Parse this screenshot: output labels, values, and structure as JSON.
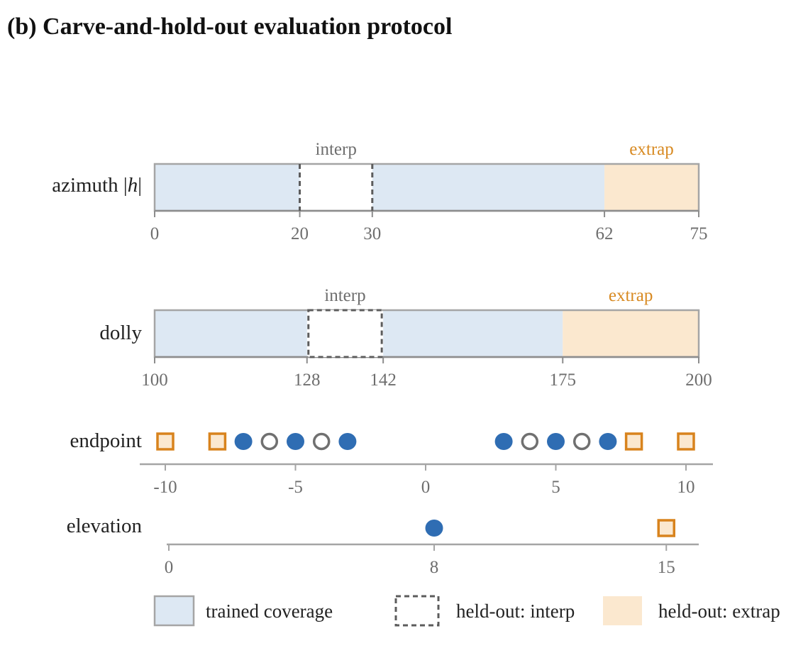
{
  "title": "(b)  Carve-and-hold-out evaluation protocol",
  "colors": {
    "trained": "#dde8f3",
    "extrap_fill": "#fbe8cf",
    "extrap_text": "#d88a22",
    "marker_orange": "#d8831d",
    "marker_blue": "#2f6db3",
    "ring_gray": "#707070",
    "frame": "#a5a5a5",
    "axis": "#a5a5a5",
    "tick_text": "#6e6e6e",
    "dash": "#5c5c5c"
  },
  "chart_data": [
    {
      "type": "range_bar",
      "row": "azimuth",
      "label_pre": "azimuth |",
      "label_ital": "h",
      "label_post": "|",
      "domain": [
        0,
        75
      ],
      "ticks": [
        "0",
        "20",
        "30",
        "62",
        "75"
      ],
      "trained_segments": [
        [
          0,
          20
        ],
        [
          30,
          62
        ]
      ],
      "interp": [
        20,
        30
      ],
      "interp_style": "sides",
      "extrap": [
        62,
        75
      ],
      "interp_label": "interp",
      "extrap_label": "extrap"
    },
    {
      "type": "range_bar",
      "row": "dolly",
      "label": "dolly",
      "domain": [
        100,
        200
      ],
      "ticks": [
        "100",
        "128",
        "142",
        "175",
        "200"
      ],
      "trained_segments": [
        [
          100,
          128
        ],
        [
          142,
          175
        ]
      ],
      "interp": [
        128,
        142
      ],
      "interp_style": "box",
      "extrap": [
        175,
        200
      ],
      "interp_label": "interp",
      "extrap_label": "extrap"
    },
    {
      "type": "scatter",
      "row": "endpoint",
      "label": "endpoint",
      "domain": [
        -11,
        11
      ],
      "ticks": [
        "-10",
        "-5",
        "0",
        "5",
        "10"
      ],
      "points": [
        {
          "x": -10,
          "kind": "extrap"
        },
        {
          "x": -8,
          "kind": "extrap"
        },
        {
          "x": -7,
          "kind": "trained"
        },
        {
          "x": -6,
          "kind": "interp"
        },
        {
          "x": -5,
          "kind": "trained"
        },
        {
          "x": -4,
          "kind": "interp"
        },
        {
          "x": -3,
          "kind": "trained"
        },
        {
          "x": 3,
          "kind": "trained"
        },
        {
          "x": 4,
          "kind": "interp"
        },
        {
          "x": 5,
          "kind": "trained"
        },
        {
          "x": 6,
          "kind": "interp"
        },
        {
          "x": 7,
          "kind": "trained"
        },
        {
          "x": 8,
          "kind": "extrap"
        },
        {
          "x": 10,
          "kind": "extrap"
        }
      ]
    },
    {
      "type": "scatter",
      "row": "elevation",
      "label": "elevation",
      "domain": [
        0,
        16
      ],
      "ticks": [
        "0",
        "8",
        "15"
      ],
      "points": [
        {
          "x": 8,
          "kind": "trained"
        },
        {
          "x": 15,
          "kind": "extrap"
        }
      ]
    }
  ],
  "legend": [
    {
      "kind": "trained",
      "label": "trained coverage"
    },
    {
      "kind": "interp",
      "label": "held-out: interp"
    },
    {
      "kind": "extrap",
      "label": "held-out: extrap"
    }
  ]
}
